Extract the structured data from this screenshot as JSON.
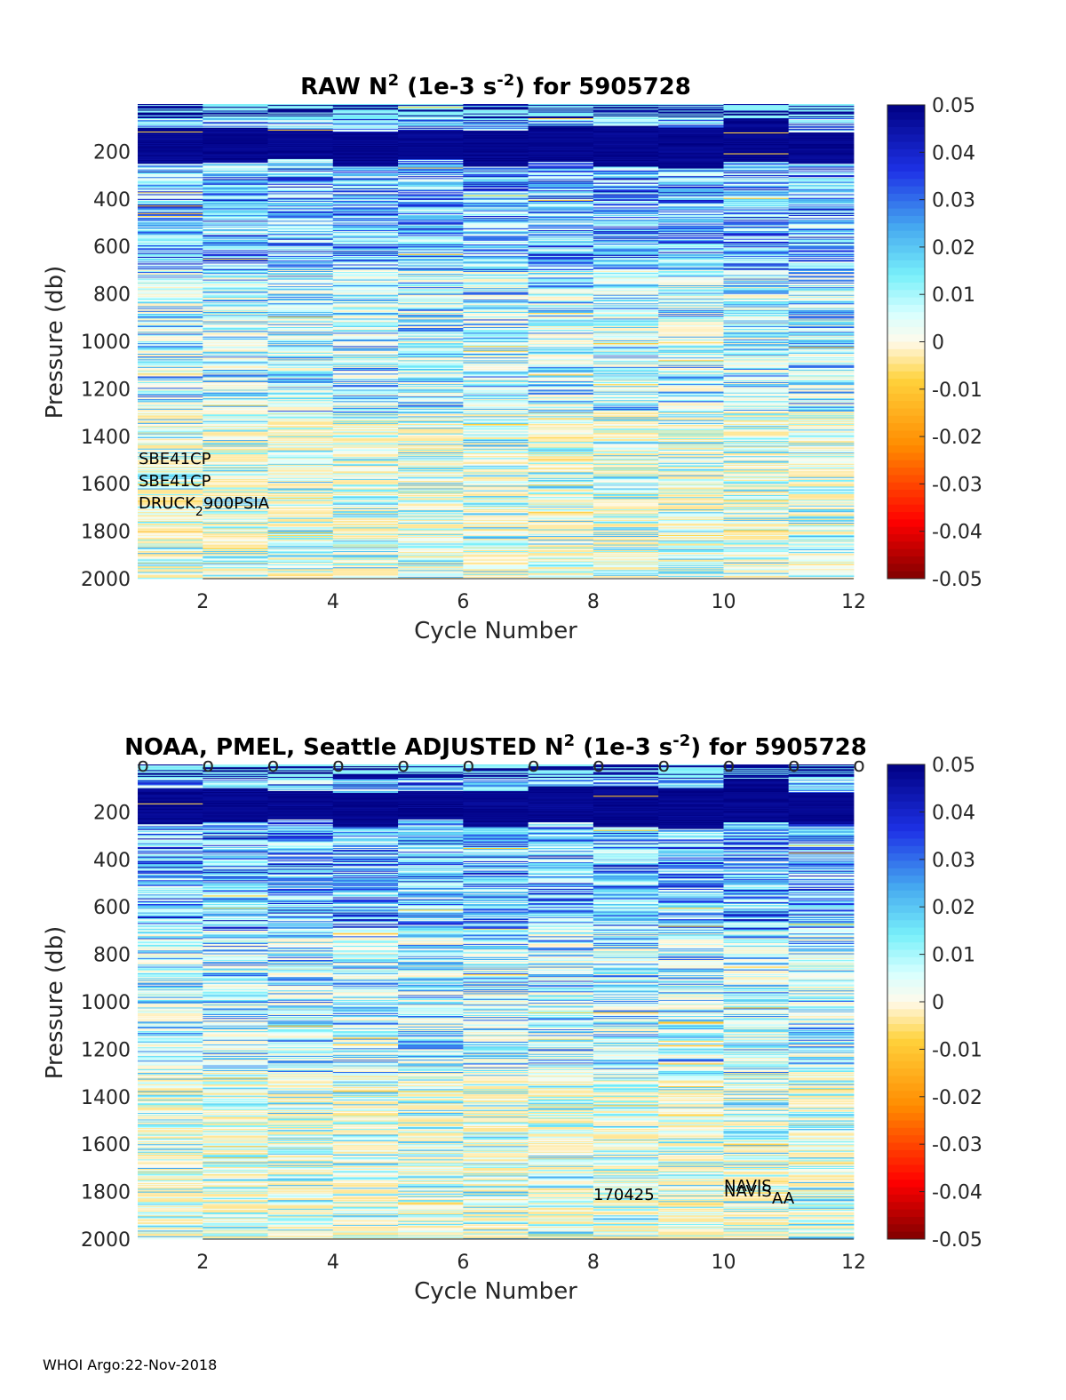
{
  "chart_data": [
    {
      "type": "heatmap",
      "title": {
        "main": "RAW N",
        "sup1": "2",
        "mid": " (1e-3 s",
        "sup2": "-2",
        "end": ") for 5905728"
      },
      "xlabel": "Cycle Number",
      "ylabel": "Pressure (db)",
      "xlim": [
        1,
        12
      ],
      "ylim": [
        0,
        2000
      ],
      "xticks": [
        "2",
        "4",
        "6",
        "8",
        "10",
        "12"
      ],
      "xtick_values": [
        2,
        4,
        6,
        8,
        10,
        12
      ],
      "yticks": [
        "200",
        "400",
        "600",
        "800",
        "1000",
        "1200",
        "1400",
        "1600",
        "1800",
        "2000"
      ],
      "ytick_values": [
        200,
        400,
        600,
        800,
        1000,
        1200,
        1400,
        1600,
        1800,
        2000
      ],
      "colorbar": {
        "ticks": [
          "0.05",
          "0.04",
          "0.03",
          "0.02",
          "0.01",
          "0",
          "-0.01",
          "-0.02",
          "-0.03",
          "-0.04",
          "-0.05"
        ],
        "tick_values": [
          0.05,
          0.04,
          0.03,
          0.02,
          0.01,
          0,
          -0.01,
          -0.02,
          -0.03,
          -0.04,
          -0.05
        ],
        "range": [
          -0.05,
          0.05
        ]
      },
      "annotations": [
        "SBE41CP",
        "SBE41CP",
        "DRUCK",
        "2",
        "900PSIA"
      ],
      "cycles": [
        1,
        2,
        3,
        4,
        5,
        6,
        7,
        8,
        9,
        10,
        11
      ],
      "strong_layer_db": [
        [
          100,
          250
        ],
        [
          100,
          240
        ],
        [
          110,
          230
        ],
        [
          120,
          260
        ],
        [
          110,
          230
        ],
        [
          110,
          260
        ],
        [
          90,
          240
        ],
        [
          90,
          260
        ],
        [
          100,
          270
        ],
        [
          60,
          240
        ],
        [
          120,
          250
        ]
      ]
    },
    {
      "type": "heatmap",
      "title": {
        "prefix": "NOAA, PMEL, Seattle  ADJUSTED N",
        "sup1": "2",
        "mid": " (1e-3 s",
        "sup2": "-2",
        "end": ") for 5905728"
      },
      "xlabel": "Cycle Number",
      "ylabel": "Pressure (db)",
      "xlim": [
        1,
        12
      ],
      "ylim": [
        0,
        2000
      ],
      "xticks": [
        "2",
        "4",
        "6",
        "8",
        "10",
        "12"
      ],
      "xtick_values": [
        2,
        4,
        6,
        8,
        10,
        12
      ],
      "yticks": [
        "200",
        "400",
        "600",
        "800",
        "1000",
        "1200",
        "1400",
        "1600",
        "1800",
        "2000"
      ],
      "ytick_values": [
        200,
        400,
        600,
        800,
        1000,
        1200,
        1400,
        1600,
        1800,
        2000
      ],
      "colorbar": {
        "ticks": [
          "0.05",
          "0.04",
          "0.03",
          "0.02",
          "0.01",
          "0",
          "-0.01",
          "-0.02",
          "-0.03",
          "-0.04",
          "-0.05"
        ],
        "tick_values": [
          0.05,
          0.04,
          0.03,
          0.02,
          0.01,
          0,
          -0.01,
          -0.02,
          -0.03,
          -0.04,
          -0.05
        ],
        "range": [
          -0.05,
          0.05
        ]
      },
      "qc_markers": {
        "symbol": "o",
        "cycles": [
          1,
          2,
          3,
          4,
          5,
          6,
          7,
          8,
          9,
          10,
          11,
          12
        ]
      },
      "annotations": [
        "170425",
        "NAVIS",
        "NAVIS",
        "AA"
      ],
      "cycles": [
        1,
        2,
        3,
        4,
        5,
        6,
        7,
        8,
        9,
        10,
        11
      ],
      "strong_layer_db": [
        [
          100,
          250
        ],
        [
          100,
          240
        ],
        [
          110,
          230
        ],
        [
          120,
          260
        ],
        [
          110,
          230
        ],
        [
          110,
          260
        ],
        [
          90,
          240
        ],
        [
          90,
          260
        ],
        [
          100,
          270
        ],
        [
          60,
          240
        ],
        [
          120,
          250
        ]
      ]
    }
  ],
  "footer": "WHOI Argo:22-Nov-2018"
}
